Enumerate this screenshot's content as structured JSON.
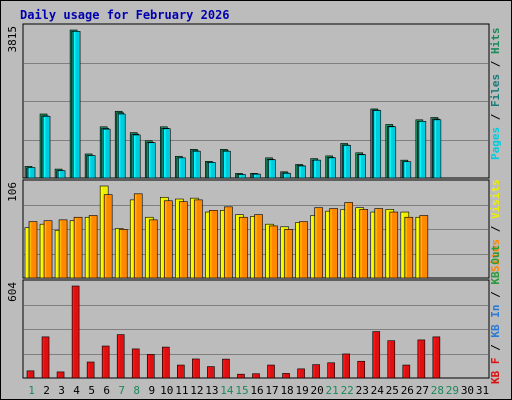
{
  "title": "Daily usage for February 2026",
  "colors": {
    "background": "#bcbcbc",
    "panel_border": "#000000",
    "grid": "#808080",
    "pages": "#00ccdd",
    "files": "#1a7a7a",
    "hits": "#1a8a5a",
    "visits": "#eeee00",
    "sites": "#ff8800",
    "kb_in": "#2a7ad8",
    "kb_out": "#2a9a3a",
    "kbf": "#dd1111",
    "weekend_label": "#1a8a5a",
    "weekday_label": "#000000"
  },
  "chart_data": [
    {
      "type": "bar",
      "title": "Daily usage for February 2026",
      "ylabel": "3815",
      "ymax": 3815,
      "grid": true,
      "categories": [
        "1",
        "2",
        "3",
        "4",
        "5",
        "6",
        "7",
        "8",
        "9",
        "10",
        "11",
        "12",
        "13",
        "14",
        "15",
        "16",
        "17",
        "18",
        "19",
        "20",
        "21",
        "22",
        "23",
        "24",
        "25",
        "26",
        "27",
        "28",
        "29",
        "30",
        "31"
      ],
      "weekend_days": [
        "1",
        "7",
        "8",
        "14",
        "15",
        "21",
        "22",
        "28",
        "29"
      ],
      "series": [
        {
          "name": "Hits",
          "values": [
            300,
            1650,
            230,
            3815,
            620,
            1320,
            1720,
            1170,
            960,
            1320,
            560,
            740,
            430,
            740,
            120,
            120,
            520,
            160,
            350,
            500,
            570,
            890,
            650,
            1780,
            1380,
            460,
            1500,
            1560,
            0,
            0,
            0
          ]
        },
        {
          "name": "Files",
          "values": [
            260,
            1600,
            190,
            3780,
            580,
            1280,
            1680,
            1130,
            920,
            1280,
            520,
            700,
            400,
            700,
            90,
            100,
            480,
            130,
            320,
            460,
            530,
            850,
            610,
            1750,
            1330,
            420,
            1460,
            1520,
            0,
            0,
            0
          ]
        },
        {
          "name": "Pages",
          "values": [
            270,
            1590,
            190,
            3780,
            580,
            1260,
            1650,
            1110,
            910,
            1270,
            520,
            690,
            400,
            690,
            90,
            100,
            470,
            120,
            310,
            460,
            520,
            840,
            600,
            1740,
            1320,
            420,
            1460,
            1500,
            0,
            0,
            0
          ]
        }
      ],
      "legend": [
        "Pages",
        "Files",
        "Hits"
      ]
    },
    {
      "type": "bar",
      "ylabel": "106",
      "ymax": 106,
      "grid": true,
      "series": [
        {
          "name": "Visits",
          "values": [
            58,
            62,
            55,
            66,
            70,
            106,
            57,
            90,
            70,
            93,
            91,
            92,
            76,
            78,
            73,
            71,
            62,
            59,
            64,
            72,
            77,
            79,
            81,
            76,
            79,
            76,
            70,
            0,
            0,
            0,
            0
          ]
        },
        {
          "name": "Sites",
          "values": [
            65,
            66,
            67,
            70,
            72,
            96,
            56,
            97,
            67,
            89,
            88,
            90,
            78,
            82,
            70,
            73,
            60,
            56,
            65,
            81,
            80,
            87,
            79,
            80,
            76,
            70,
            72,
            0,
            0,
            0,
            0
          ]
        }
      ],
      "legend": [
        "Sites",
        "Visits"
      ]
    },
    {
      "type": "bar",
      "ylabel": "604",
      "ymax": 604,
      "grid": true,
      "series": [
        {
          "name": "KB F",
          "values": [
            47,
            270,
            40,
            604,
            105,
            210,
            285,
            191,
            155,
            203,
            85,
            125,
            75,
            124,
            25,
            28,
            85,
            30,
            60,
            88,
            100,
            158,
            110,
            305,
            245,
            85,
            250,
            270,
            0,
            0,
            0
          ]
        }
      ],
      "legend": [
        "KB F",
        "KB In",
        "KB Out"
      ]
    }
  ]
}
